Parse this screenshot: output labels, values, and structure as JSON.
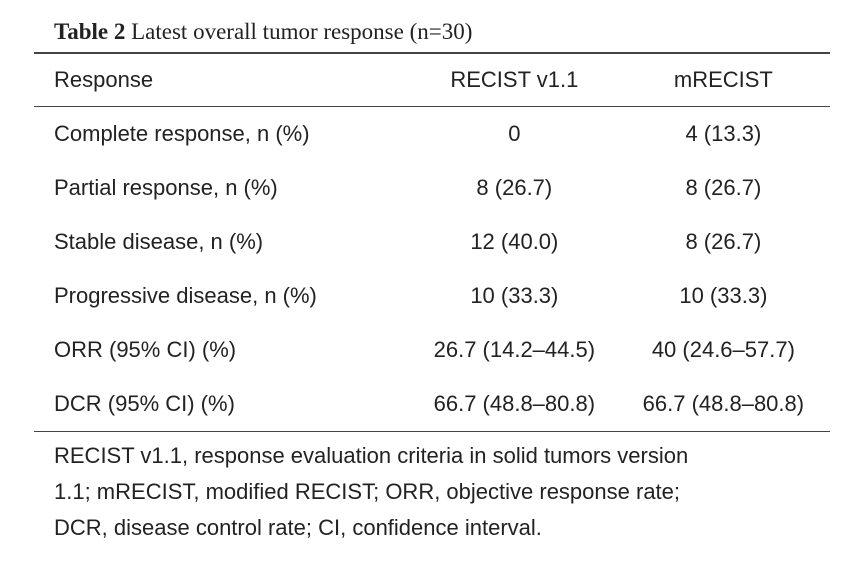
{
  "caption": {
    "number": "Table 2",
    "text": "Latest overall tumor response (n=30)"
  },
  "table": {
    "headers": [
      "Response",
      "RECIST v1.1",
      "mRECIST"
    ],
    "rows": [
      [
        "Complete response, n (%)",
        "0",
        "4 (13.3)"
      ],
      [
        "Partial response, n (%)",
        "8 (26.7)",
        "8 (26.7)"
      ],
      [
        "Stable disease, n (%)",
        "12 (40.0)",
        "8 (26.7)"
      ],
      [
        "Progressive disease, n (%)",
        "10 (33.3)",
        "10 (33.3)"
      ],
      [
        "ORR (95% CI) (%)",
        "26.7 (14.2–44.5)",
        "40 (24.6–57.7)"
      ],
      [
        "DCR (95% CI) (%)",
        "66.7 (48.8–80.8)",
        "66.7 (48.8–80.8)"
      ]
    ]
  },
  "footnote": {
    "line1": "RECIST v1.1, response evaluation criteria in solid tumors version",
    "line2": "1.1; mRECIST, modified RECIST; ORR, objective response rate;",
    "line3": "DCR, disease control rate; CI, confidence interval."
  }
}
